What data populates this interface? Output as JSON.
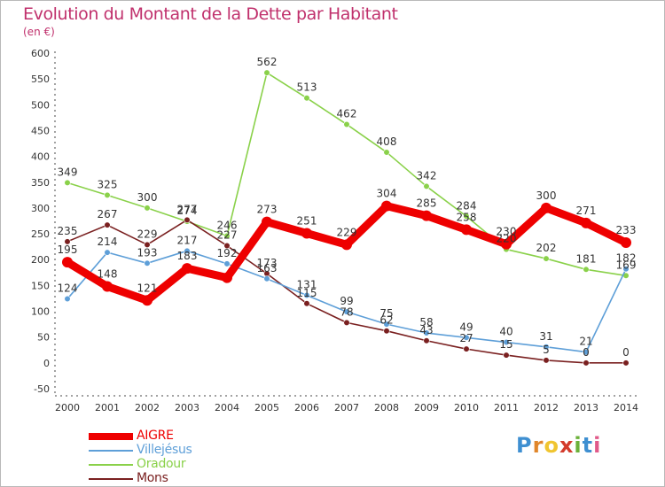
{
  "title": "Evolution du Montant de la Dette par Habitant",
  "subtitle": "(en €)",
  "logo": "Proxiti",
  "chart_data": {
    "type": "line",
    "title": "Evolution du Montant de la Dette par Habitant",
    "ylabel": "(en €)",
    "xlabel": "",
    "x": [
      "2000",
      "2001",
      "2002",
      "2003",
      "2004",
      "2005",
      "2006",
      "2007",
      "2008",
      "2009",
      "2010",
      "2011",
      "2012",
      "2013",
      "2014"
    ],
    "ylim": [
      -50,
      600
    ],
    "yticks": [
      -50,
      0,
      50,
      100,
      150,
      200,
      250,
      300,
      350,
      400,
      450,
      500,
      550,
      600
    ],
    "grid": false,
    "legend_placement": "bottom-left",
    "series": [
      {
        "name": "AIGRE",
        "color": "#ee0000",
        "values": [
          195,
          148,
          121,
          183,
          165,
          273,
          251,
          229,
          304,
          285,
          258,
          230,
          300,
          271,
          233
        ],
        "labels": [
          "195",
          "148",
          "121",
          "183",
          "",
          "273",
          "251",
          "229",
          "304",
          "285",
          "258",
          "230",
          "300",
          "271",
          "233"
        ]
      },
      {
        "name": "Villejésus",
        "color": "#5e9fd8",
        "values": [
          124,
          214,
          193,
          217,
          192,
          163,
          131,
          99,
          75,
          58,
          49,
          40,
          31,
          21,
          182
        ],
        "labels": [
          "124",
          "214",
          "193",
          "217",
          "192",
          "163",
          "131",
          "99",
          "75",
          "58",
          "49",
          "40",
          "31",
          "21",
          "182"
        ]
      },
      {
        "name": "Oradour",
        "color": "#8ad14a",
        "values": [
          349,
          325,
          300,
          274,
          246,
          562,
          513,
          462,
          408,
          342,
          284,
          220,
          202,
          181,
          169
        ],
        "labels": [
          "349",
          "325",
          "300",
          "274",
          "246",
          "562",
          "513",
          "462",
          "408",
          "342",
          "284",
          "220",
          "202",
          "181",
          "169"
        ]
      },
      {
        "name": "Mons",
        "color": "#7a2020",
        "values": [
          235,
          267,
          229,
          277,
          227,
          173,
          115,
          78,
          62,
          43,
          27,
          15,
          5,
          0,
          0
        ],
        "labels": [
          "235",
          "267",
          "229",
          "277",
          "227",
          "173",
          "115",
          "78",
          "62",
          "43",
          "27",
          "15",
          "5",
          "0",
          "0"
        ]
      }
    ]
  }
}
